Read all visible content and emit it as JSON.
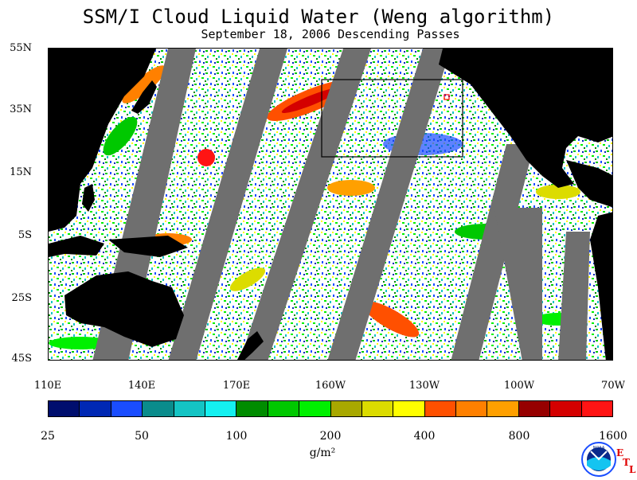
{
  "title": "SSM/I Cloud Liquid Water (Weng algorithm)",
  "subtitle": "September 18, 2006  Descending Passes",
  "map": {
    "lat_labels": [
      "55N",
      "35N",
      "15N",
      "5S",
      "25S",
      "45S"
    ],
    "lon_labels": [
      "110E",
      "140E",
      "170E",
      "160W",
      "130W",
      "100W",
      "70W"
    ],
    "land_color": "#000000",
    "no_data_color": "#6f6f6f",
    "ocean_clear_color": "#ffffff",
    "box_outline_color": "#000000",
    "marker_color": "#ff0000"
  },
  "colorbar": {
    "labels": [
      "25",
      "50",
      "100",
      "200",
      "400",
      "800",
      "1600"
    ],
    "units": "g/m²",
    "colors": [
      "#000e6e",
      "#0028b4",
      "#1a4dff",
      "#0a8c8c",
      "#14c4c4",
      "#14f0f0",
      "#008c00",
      "#00c800",
      "#00f000",
      "#a8a800",
      "#dcdc00",
      "#ffff00",
      "#ff5000",
      "#ff8000",
      "#ffa000",
      "#960000",
      "#d40000",
      "#ff1414"
    ]
  },
  "logo": {
    "text": "NOAA",
    "letters": [
      "E",
      "T",
      "L"
    ],
    "icon": "noaa-logo-icon"
  }
}
